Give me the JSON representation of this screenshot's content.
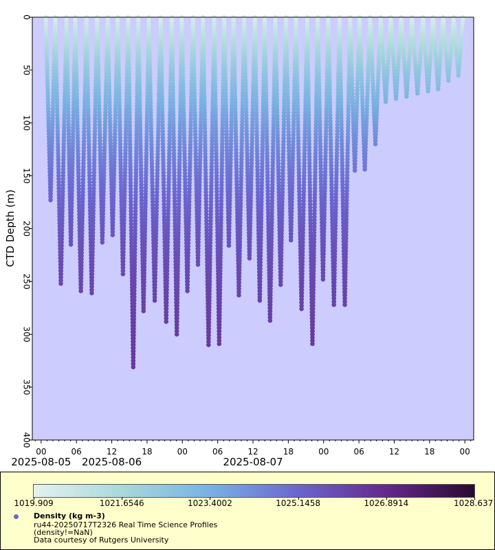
{
  "chart_data": {
    "type": "scatter",
    "title": "",
    "xlabel": "",
    "ylabel": "CTD Depth (m)",
    "ylim": [
      0,
      400
    ],
    "y_inverted": true,
    "y_ticks": [
      0,
      50,
      100,
      150,
      200,
      250,
      300,
      350,
      400
    ],
    "y_tick_labels": [
      "0",
      "50",
      "100",
      "150",
      "200",
      "250",
      "300",
      "350",
      "400"
    ],
    "x_time_range_hours": [
      -1.5,
      73.5
    ],
    "x_ticks_hours": [
      0,
      6,
      12,
      18,
      24,
      30,
      36,
      42,
      48,
      54,
      60,
      66,
      72
    ],
    "x_tick_labels": [
      "00",
      "06",
      "12",
      "18",
      "00",
      "06",
      "12",
      "18",
      "00",
      "06",
      "12",
      "18",
      "00"
    ],
    "x_date_labels": [
      {
        "hours": 0,
        "label": "2025-08-05"
      },
      {
        "hours": 12,
        "label": "2025-08-06"
      },
      {
        "hours": 36,
        "label": "2025-08-07"
      }
    ],
    "profile_start_hours": [
      0.8,
      2.4,
      4.3,
      5.8,
      7.7,
      9.5,
      11.3,
      13.0,
      14.8,
      16.5,
      18.3,
      20.3,
      22.2,
      23.9,
      25.8,
      27.5,
      29.4,
      31.1,
      32.7,
      34.5,
      36.3,
      38.0,
      39.8,
      41.6,
      43.3,
      45.2,
      47.0,
      48.8,
      50.7,
      52.5,
      54.1,
      55.9,
      57.7,
      59.4,
      61.2,
      63.0,
      64.9,
      66.6,
      68.3,
      70.1
    ],
    "profile_max_depth_m": [
      173,
      252,
      215,
      259,
      261,
      213,
      206,
      243,
      331,
      278,
      268,
      288,
      300,
      259,
      234,
      310,
      309,
      216,
      263,
      228,
      268,
      287,
      253,
      211,
      276,
      309,
      248,
      272,
      272,
      145,
      144,
      120,
      80,
      77,
      75,
      72,
      70,
      68,
      60,
      55
    ],
    "series": [
      {
        "name": "Density (kg m-3)",
        "color_variable": "density"
      }
    ],
    "colorbar": {
      "min": 1019.909,
      "max": 1028.637,
      "tick_labels": [
        "1019.909",
        "1021.6546",
        "1023.4002",
        "1025.1458",
        "1026.8914",
        "1028.637"
      ],
      "colors": [
        "#e4f1ef",
        "#a9d8db",
        "#7ab1e3",
        "#6a66cf",
        "#65288a",
        "#2a0a2f"
      ]
    },
    "plot_background": "#ccccff"
  },
  "legend": {
    "marker_color": "#6a66cf",
    "title": "Density (kg m-3)",
    "line1": "ru44-20250717T2326 Real Time Science Profiles",
    "line2": "(density!=NaN)",
    "line3": "Data courtesy of Rutgers University"
  }
}
